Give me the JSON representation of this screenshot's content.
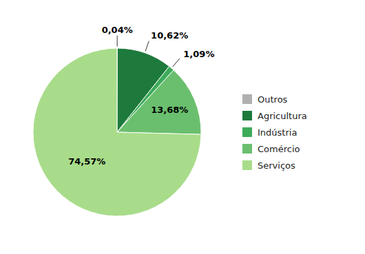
{
  "chart_data": {
    "type": "pie",
    "categories": [
      "Outros",
      "Agricultura",
      "Indústria",
      "Comércio",
      "Serviços"
    ],
    "values": [
      0.04,
      10.62,
      1.09,
      13.68,
      74.57
    ],
    "value_labels": [
      "0,04%",
      "10,62%",
      "1,09%",
      "13,68%",
      "74,57%"
    ],
    "colors": [
      "#b0b0b0",
      "#1e7a3c",
      "#3dab5a",
      "#6abf6e",
      "#a8dc8a"
    ],
    "data_labels": true,
    "legend": "right"
  }
}
